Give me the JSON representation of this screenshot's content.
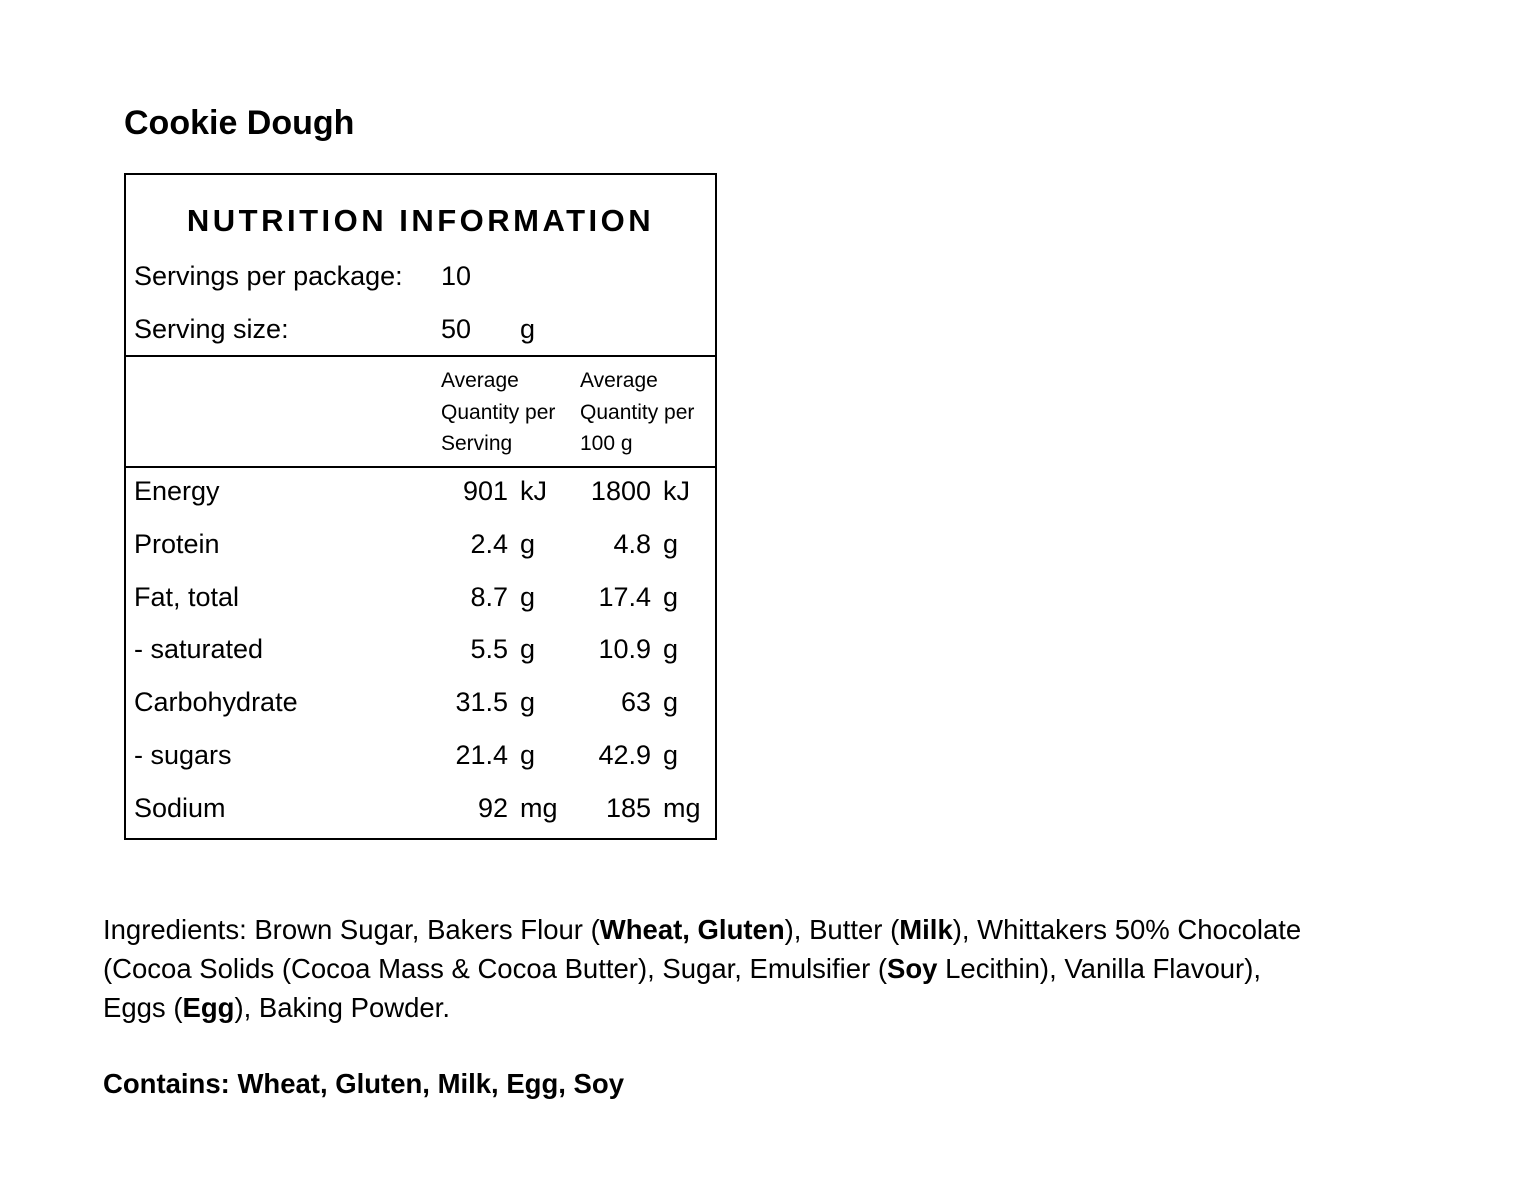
{
  "title": "Cookie Dough",
  "panel": {
    "heading": "NUTRITION INFORMATION",
    "servings_per_package": {
      "label": "Servings per package:",
      "value": "10"
    },
    "serving_size": {
      "label": "Serving size:",
      "value": "50",
      "unit": "g"
    },
    "column_headers": [
      [
        "Average",
        "Quantity per",
        "Serving"
      ],
      [
        "Average",
        "Quantity per",
        "100 g"
      ]
    ],
    "rows": [
      {
        "name": "Energy",
        "serving": "901",
        "serving_unit": "kJ",
        "per100": "1800",
        "per100_unit": "kJ"
      },
      {
        "name": "Protein",
        "serving": "2.4",
        "serving_unit": "g",
        "per100": "4.8",
        "per100_unit": "g"
      },
      {
        "name": "Fat, total",
        "serving": "8.7",
        "serving_unit": "g",
        "per100": "17.4",
        "per100_unit": "g"
      },
      {
        "name": "- saturated",
        "serving": "5.5",
        "serving_unit": "g",
        "per100": "10.9",
        "per100_unit": "g"
      },
      {
        "name": "Carbohydrate",
        "serving": "31.5",
        "serving_unit": "g",
        "per100": "63",
        "per100_unit": "g"
      },
      {
        "name": "- sugars",
        "serving": "21.4",
        "serving_unit": "g",
        "per100": "42.9",
        "per100_unit": "g"
      },
      {
        "name": "Sodium",
        "serving": "92",
        "serving_unit": "mg",
        "per100": "185",
        "per100_unit": "mg"
      }
    ]
  },
  "ingredients": {
    "segments": [
      {
        "text": "Ingredients: Brown Sugar, Bakers Flour (",
        "bold": false
      },
      {
        "text": "Wheat, Gluten",
        "bold": true
      },
      {
        "text": "), Butter (",
        "bold": false
      },
      {
        "text": "Milk",
        "bold": true
      },
      {
        "text": "), Whittakers 50% Chocolate (Cocoa Solids (Cocoa Mass & Cocoa Butter), Sugar, Emulsifier (",
        "bold": false
      },
      {
        "text": "Soy",
        "bold": true
      },
      {
        "text": " Lecithin), Vanilla Flavour), Eggs (",
        "bold": false
      },
      {
        "text": "Egg",
        "bold": true
      },
      {
        "text": "), Baking Powder.",
        "bold": false
      }
    ]
  },
  "contains": "Contains: Wheat, Gluten, Milk, Egg, Soy"
}
